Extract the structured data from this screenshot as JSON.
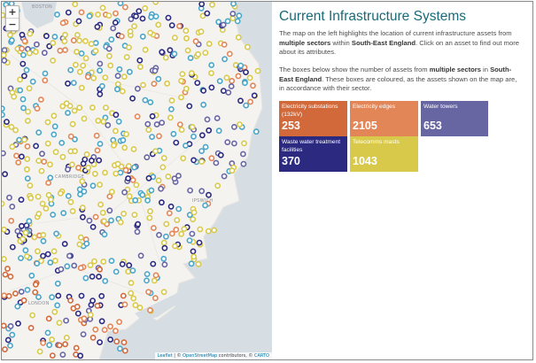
{
  "map": {
    "zoom_in_label": "+",
    "zoom_out_label": "−",
    "place_labels": [
      "BOSTON",
      "CAMBRIDGE",
      "IPSWICH",
      "LONDON"
    ],
    "attribution": {
      "leaflet": "Leaflet",
      "sep1": " | © ",
      "osm": "OpenStreetMap",
      "sep2": " contributors, © ",
      "carto": "CARTO"
    },
    "colors": {
      "sea": "#d7dee3",
      "land": "#f4f3f0",
      "electricity_substations": "#d2693b",
      "electricity_edges": "#e38657",
      "water_towers": "#6865a3",
      "waste_water": "#2b2980",
      "telecomms": "#d9c94a",
      "marker_generic": "#4aa6c9"
    }
  },
  "panel": {
    "title": "Current Infrastructure Systems",
    "intro": {
      "t1": "The map on the left highlights the location of current infrastructure assets from ",
      "b1": "multiple sectors",
      "t2": " within ",
      "b2": "South-East England",
      "t3": ". Click on an asset to find out more about its attributes."
    },
    "boxes_text": {
      "t1": "The boxes below show the number of assets from ",
      "b1": "multiple sectors",
      "t2": " in ",
      "b2": "South-East England",
      "t3": ". These boxes are coloured, as the assets shown on the map are, in accordance with their sector."
    },
    "boxes": [
      {
        "label": "Electricity substations (132kV)",
        "count": "253",
        "color": "#d2693b"
      },
      {
        "label": "Electricity edges",
        "count": "2105",
        "color": "#e38657"
      },
      {
        "label": "Water towers",
        "count": "653",
        "color": "#6865a3"
      },
      {
        "label": "Waste water treatment facilities",
        "count": "370",
        "color": "#2b2980"
      },
      {
        "label": "Telecomms masts",
        "count": "1043",
        "color": "#d9c94a"
      }
    ]
  }
}
